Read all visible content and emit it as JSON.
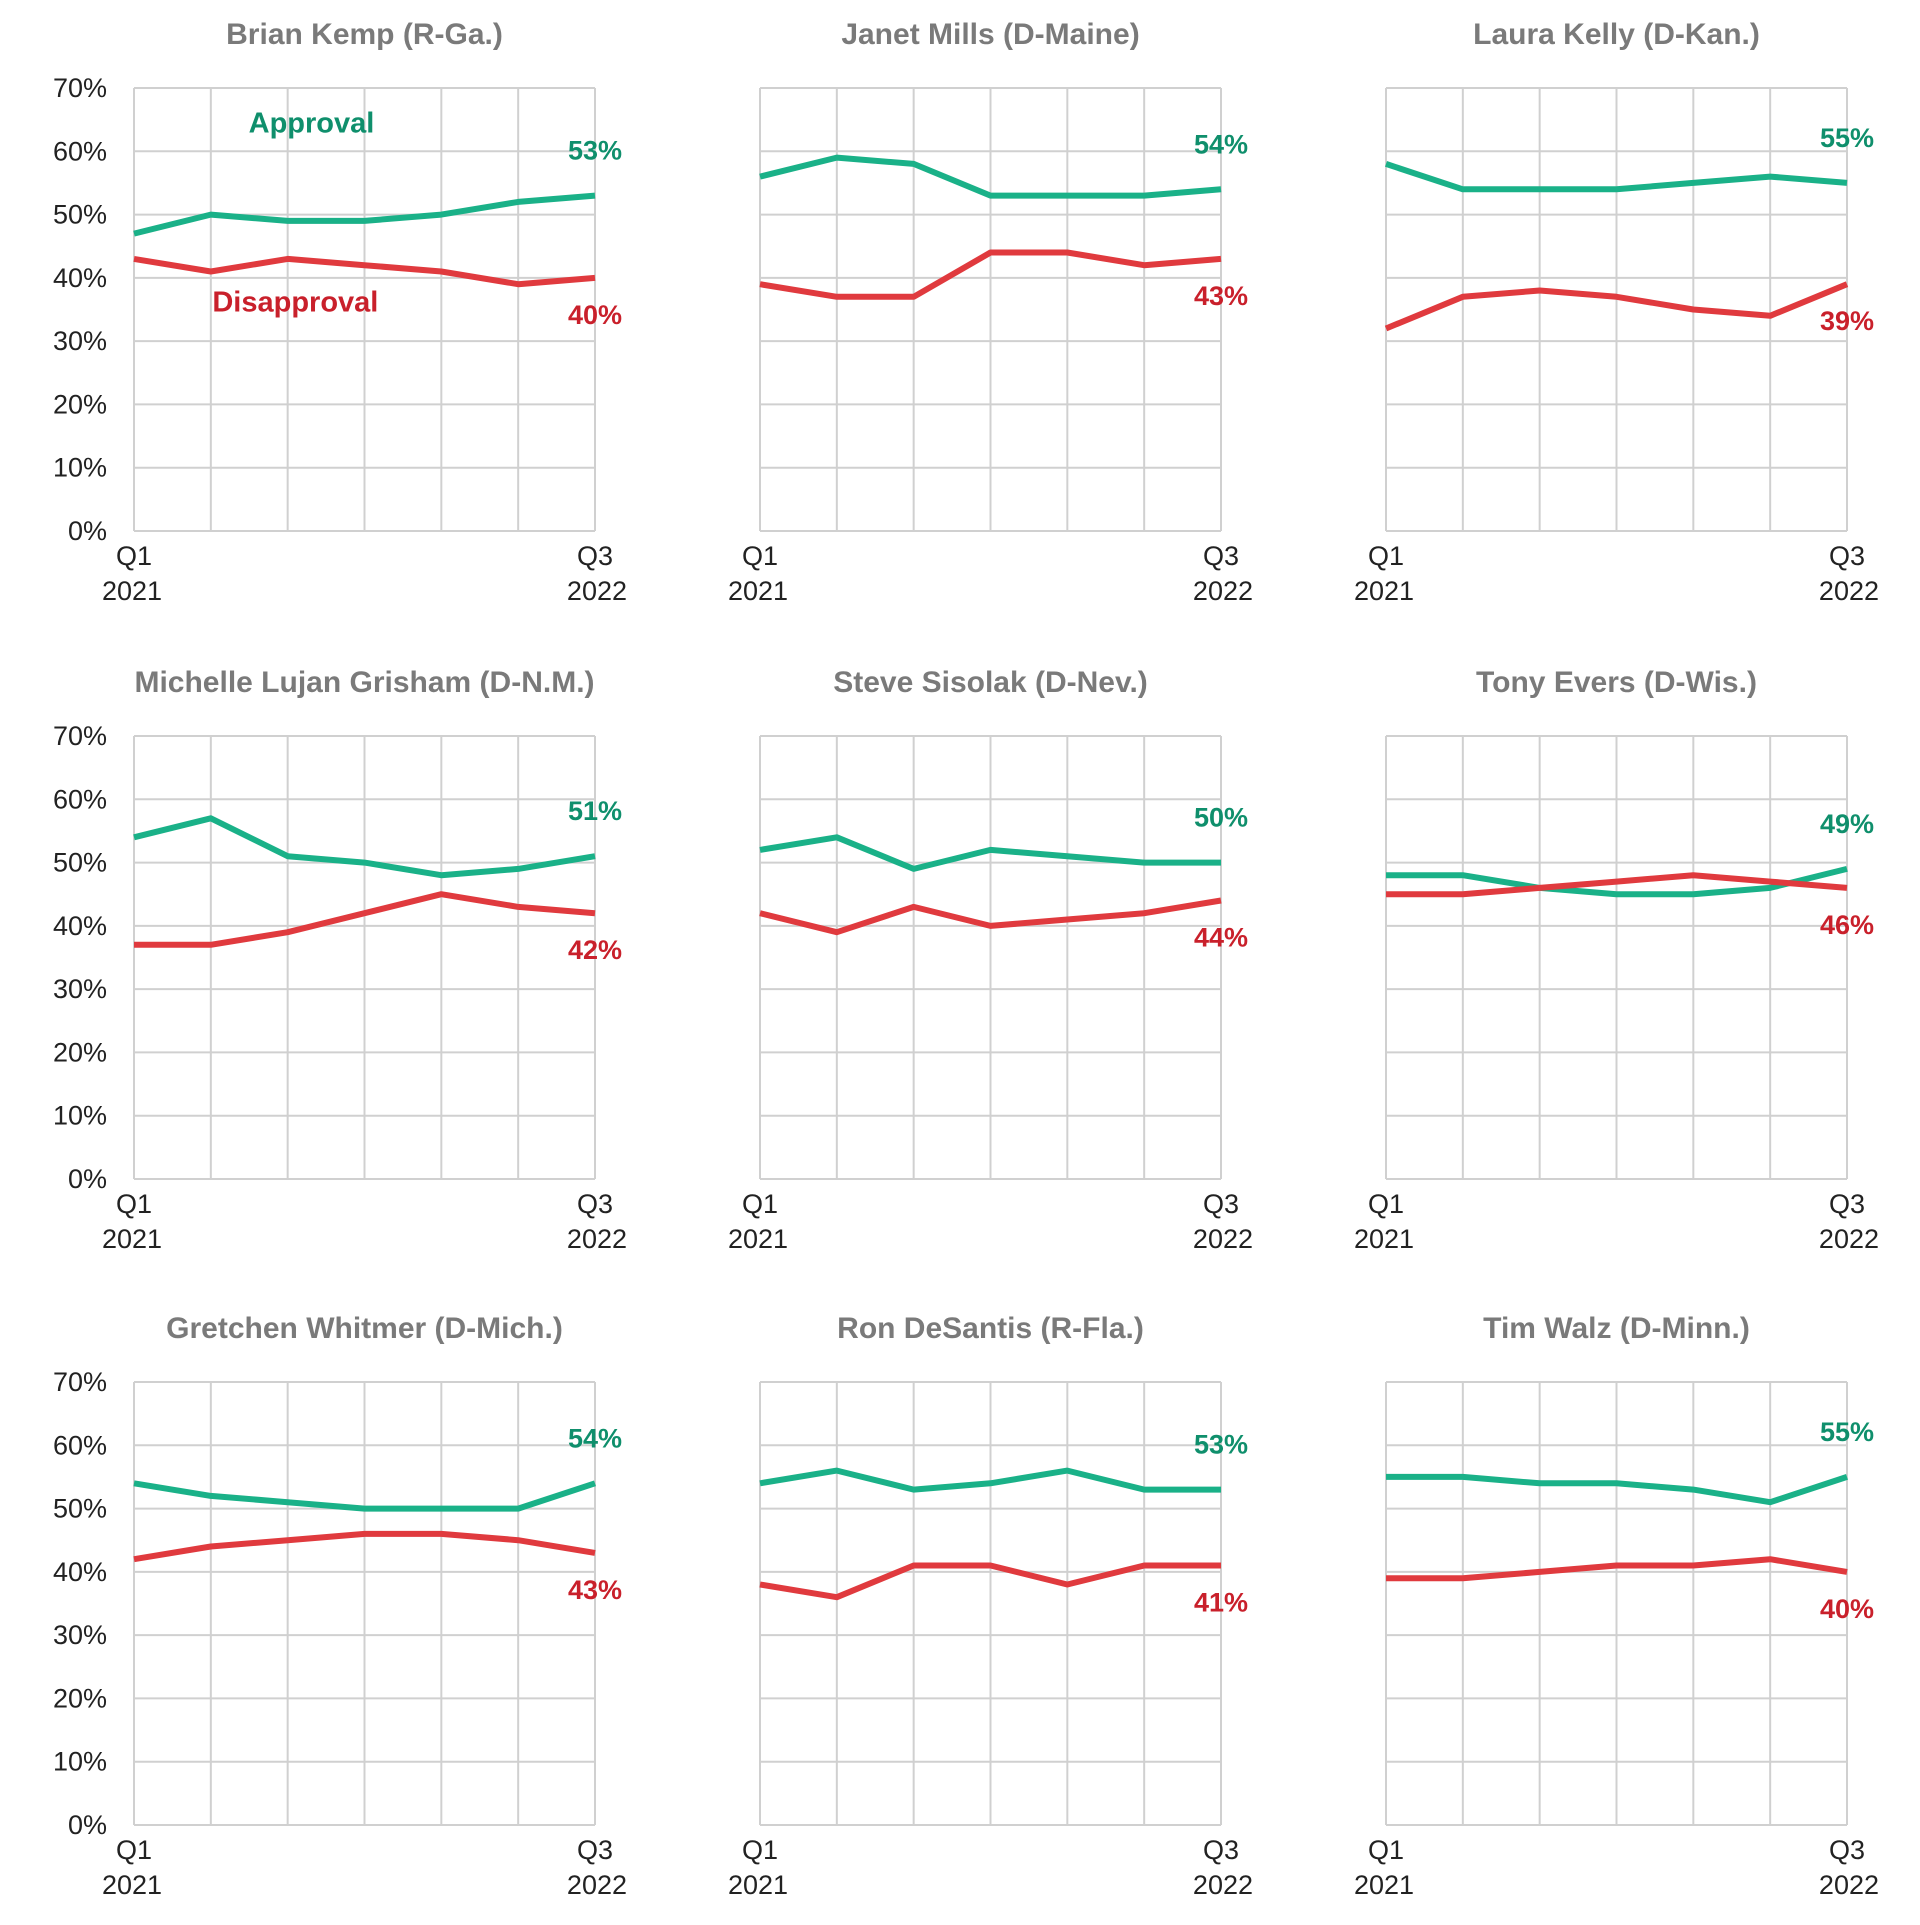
{
  "colors": {
    "approval": "#1ab188",
    "approval_text": "#0f8f6c",
    "disapproval": "#e03a3e",
    "disapproval_text": "#c9202b",
    "grid": "#d0d0d0",
    "title": "#7a7a7a"
  },
  "chart_data": [
    {
      "type": "line",
      "title": "Brian Kemp (R-Ga.)",
      "x_tick_labels": [
        [
          "Q1",
          "2021"
        ],
        [
          "Q3",
          "2022"
        ]
      ],
      "y_tick_labels": [
        "0%",
        "10%",
        "20%",
        "30%",
        "40%",
        "50%",
        "60%",
        "70%"
      ],
      "ylim": [
        0,
        70
      ],
      "grid": true,
      "annotations": [
        {
          "text": "Approval",
          "series": "approval"
        },
        {
          "text": "Disapproval",
          "series": "disapproval"
        }
      ],
      "series": [
        {
          "key": "approval",
          "values": [
            47,
            50,
            49,
            49,
            50,
            52,
            53
          ],
          "end_label": "53%"
        },
        {
          "key": "disapproval",
          "values": [
            43,
            41,
            43,
            42,
            41,
            39,
            40
          ],
          "end_label": "40%"
        }
      ]
    },
    {
      "type": "line",
      "title": "Janet Mills (D-Maine)",
      "x_tick_labels": [
        [
          "Q1",
          "2021"
        ],
        [
          "Q3",
          "2022"
        ]
      ],
      "y_tick_labels": [],
      "ylim": [
        0,
        70
      ],
      "grid": true,
      "series": [
        {
          "key": "approval",
          "values": [
            56,
            59,
            58,
            53,
            53,
            53,
            54
          ],
          "end_label": "54%"
        },
        {
          "key": "disapproval",
          "values": [
            39,
            37,
            37,
            44,
            44,
            42,
            43
          ],
          "end_label": "43%"
        }
      ]
    },
    {
      "type": "line",
      "title": "Laura Kelly (D-Kan.)",
      "x_tick_labels": [
        [
          "Q1",
          "2021"
        ],
        [
          "Q3",
          "2022"
        ]
      ],
      "y_tick_labels": [],
      "ylim": [
        0,
        70
      ],
      "grid": true,
      "series": [
        {
          "key": "approval",
          "values": [
            58,
            54,
            54,
            54,
            55,
            56,
            55
          ],
          "end_label": "55%"
        },
        {
          "key": "disapproval",
          "values": [
            32,
            37,
            38,
            37,
            35,
            34,
            39
          ],
          "end_label": "39%"
        }
      ]
    },
    {
      "type": "line",
      "title": "Michelle Lujan Grisham (D-N.M.)",
      "x_tick_labels": [
        [
          "Q1",
          "2021"
        ],
        [
          "Q3",
          "2022"
        ]
      ],
      "y_tick_labels": [
        "0%",
        "10%",
        "20%",
        "30%",
        "40%",
        "50%",
        "60%",
        "70%"
      ],
      "ylim": [
        0,
        70
      ],
      "grid": true,
      "series": [
        {
          "key": "approval",
          "values": [
            54,
            57,
            51,
            50,
            48,
            49,
            51
          ],
          "end_label": "51%"
        },
        {
          "key": "disapproval",
          "values": [
            37,
            37,
            39,
            42,
            45,
            43,
            42
          ],
          "end_label": "42%"
        }
      ]
    },
    {
      "type": "line",
      "title": "Steve Sisolak (D-Nev.)",
      "x_tick_labels": [
        [
          "Q1",
          "2021"
        ],
        [
          "Q3",
          "2022"
        ]
      ],
      "y_tick_labels": [],
      "ylim": [
        0,
        70
      ],
      "grid": true,
      "series": [
        {
          "key": "approval",
          "values": [
            52,
            54,
            49,
            52,
            51,
            50,
            50
          ],
          "end_label": "50%"
        },
        {
          "key": "disapproval",
          "values": [
            42,
            39,
            43,
            40,
            41,
            42,
            44
          ],
          "end_label": "44%"
        }
      ]
    },
    {
      "type": "line",
      "title": "Tony Evers (D-Wis.)",
      "x_tick_labels": [
        [
          "Q1",
          "2021"
        ],
        [
          "Q3",
          "2022"
        ]
      ],
      "y_tick_labels": [],
      "ylim": [
        0,
        70
      ],
      "grid": true,
      "series": [
        {
          "key": "approval",
          "values": [
            48,
            48,
            46,
            45,
            45,
            46,
            49
          ],
          "end_label": "49%"
        },
        {
          "key": "disapproval",
          "values": [
            45,
            45,
            46,
            47,
            48,
            47,
            46
          ],
          "end_label": "46%"
        }
      ]
    },
    {
      "type": "line",
      "title": "Gretchen Whitmer (D-Mich.)",
      "x_tick_labels": [
        [
          "Q1",
          "2021"
        ],
        [
          "Q3",
          "2022"
        ]
      ],
      "y_tick_labels": [
        "0%",
        "10%",
        "20%",
        "30%",
        "40%",
        "50%",
        "60%",
        "70%"
      ],
      "ylim": [
        0,
        70
      ],
      "grid": true,
      "series": [
        {
          "key": "approval",
          "values": [
            54,
            52,
            51,
            50,
            50,
            50,
            54
          ],
          "end_label": "54%"
        },
        {
          "key": "disapproval",
          "values": [
            42,
            44,
            45,
            46,
            46,
            45,
            43
          ],
          "end_label": "43%"
        }
      ]
    },
    {
      "type": "line",
      "title": "Ron DeSantis (R-Fla.)",
      "x_tick_labels": [
        [
          "Q1",
          "2021"
        ],
        [
          "Q3",
          "2022"
        ]
      ],
      "y_tick_labels": [],
      "ylim": [
        0,
        70
      ],
      "grid": true,
      "series": [
        {
          "key": "approval",
          "values": [
            54,
            56,
            53,
            54,
            56,
            53,
            53
          ],
          "end_label": "53%"
        },
        {
          "key": "disapproval",
          "values": [
            38,
            36,
            41,
            41,
            38,
            41,
            41
          ],
          "end_label": "41%"
        }
      ]
    },
    {
      "type": "line",
      "title": "Tim Walz (D-Minn.)",
      "x_tick_labels": [
        [
          "Q1",
          "2021"
        ],
        [
          "Q3",
          "2022"
        ]
      ],
      "y_tick_labels": [],
      "ylim": [
        0,
        70
      ],
      "grid": true,
      "series": [
        {
          "key": "approval",
          "values": [
            55,
            55,
            54,
            54,
            53,
            51,
            55
          ],
          "end_label": "55%"
        },
        {
          "key": "disapproval",
          "values": [
            39,
            39,
            40,
            41,
            41,
            42,
            40
          ],
          "end_label": "40%"
        }
      ]
    }
  ]
}
